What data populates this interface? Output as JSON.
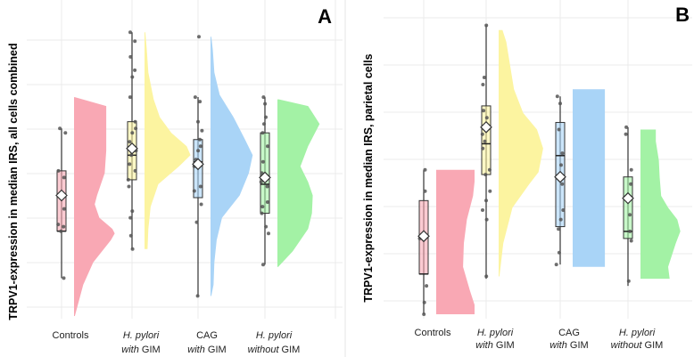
{
  "chart_data": [
    {
      "type": "raincloud",
      "panel_label": "A",
      "ylabel": "TRPV1-expression in median IRS, all cells combined",
      "categories": [
        {
          "line1": "Controls",
          "line1_italic": false,
          "line2": "",
          "line2_italic": "",
          "line2_rest": ""
        },
        {
          "line1": "H. pylori",
          "line1_italic": true,
          "line2_italic": "with",
          "line2_rest": " GIM"
        },
        {
          "line1": "CAG",
          "line1_italic": false,
          "line2_italic": "with",
          "line2_rest": " GIM"
        },
        {
          "line1": "H. pylori",
          "line1_italic": true,
          "line2_italic": "without",
          "line2_rest": " GIM"
        }
      ],
      "ylim": [
        0,
        12
      ],
      "grid": true,
      "colors": [
        "#f9a8b4",
        "#fcf4a0",
        "#a9d4f7",
        "#a3f2a5"
      ],
      "groups": [
        {
          "box": {
            "min": 1.3,
            "q1": 3.4,
            "median": 3.4,
            "q3": 6.1,
            "max": 8.0
          },
          "mean": 5.0,
          "points": [
            3.6,
            3.7,
            3.4,
            4.4,
            5.0,
            5.8,
            6.1,
            7.8,
            8.0,
            1.3
          ],
          "density": {
            "y": [
              -0.4,
              1.0,
              2.0,
              3.0,
              3.3,
              3.5,
              4.0,
              4.6,
              5.0,
              6.0,
              7.0,
              9.0,
              9.4
            ],
            "w": [
              0.01,
              0.12,
              0.25,
              0.48,
              0.53,
              0.5,
              0.33,
              0.27,
              0.3,
              0.4,
              0.42,
              0.42,
              0.01
            ]
          }
        },
        {
          "box": {
            "min": 2.6,
            "q1": 5.7,
            "median": 6.8,
            "q3": 8.3,
            "max": 12.3
          },
          "mean": 7.1,
          "points": [
            2.6,
            3.2,
            4.0,
            4.3,
            5.4,
            5.7,
            6.1,
            6.4,
            6.8,
            7.0,
            7.4,
            7.8,
            8.0,
            8.3,
            9.4,
            10.3,
            10.6,
            11.2,
            11.9,
            12.3
          ],
          "density": {
            "y": [
              2.6,
              3.5,
              4.5,
              5.5,
              6.3,
              6.8,
              7.2,
              7.8,
              8.5,
              9.3,
              10.5,
              11.5,
              12.3
            ],
            "w": [
              0.04,
              0.05,
              0.08,
              0.18,
              0.45,
              0.6,
              0.55,
              0.35,
              0.2,
              0.12,
              0.05,
              0.03,
              0.01
            ]
          }
        },
        {
          "box": {
            "min": 0.5,
            "q1": 4.9,
            "median": 6.5,
            "q3": 7.5,
            "max": 9.4
          },
          "mean": 6.4,
          "points": [
            0.5,
            3.8,
            4.6,
            5.2,
            5.4,
            6.3,
            6.5,
            6.6,
            7.0,
            7.2,
            7.5,
            7.9,
            8.3,
            9.2,
            9.4,
            12.1
          ],
          "density": {
            "y": [
              0.5,
              1.0,
              2.0,
              3.0,
              4.0,
              5.0,
              6.0,
              6.8,
              7.5,
              8.5,
              9.5,
              10.5,
              11.5,
              12.1
            ],
            "w": [
              0.01,
              0.04,
              0.05,
              0.08,
              0.15,
              0.38,
              0.5,
              0.55,
              0.45,
              0.3,
              0.12,
              0.05,
              0.03,
              0.01
            ]
          }
        },
        {
          "box": {
            "min": 1.9,
            "q1": 4.2,
            "median": 5.5,
            "q3": 7.8,
            "max": 9.4
          },
          "mean": 5.8,
          "points": [
            1.9,
            3.3,
            3.6,
            4.2,
            4.5,
            4.7,
            5.4,
            5.6,
            6.0,
            6.5,
            7.2,
            7.8,
            8.2,
            8.5,
            9.1,
            9.4
          ],
          "density": {
            "y": [
              1.8,
              2.5,
              3.5,
              4.2,
              5.0,
              5.6,
              6.3,
              7.2,
              8.2,
              9.0,
              9.3
            ],
            "w": [
              0.01,
              0.2,
              0.4,
              0.45,
              0.46,
              0.4,
              0.3,
              0.4,
              0.55,
              0.4,
              0.02
            ]
          }
        }
      ]
    },
    {
      "type": "raincloud",
      "panel_label": "B",
      "ylabel": "TRPV1-expression in median IRS, parietal cells",
      "categories": [
        {
          "line1": "Controls",
          "line1_italic": false,
          "line2": "",
          "line2_italic": "",
          "line2_rest": ""
        },
        {
          "line1": "H. pylori",
          "line1_italic": true,
          "line2_italic": "with",
          "line2_rest": " GIM"
        },
        {
          "line1": "CAG",
          "line1_italic": false,
          "line2_italic": "with",
          "line2_rest": " GIM"
        },
        {
          "line1": "H. pylori",
          "line1_italic": true,
          "line2_italic": "without",
          "line2_rest": " GIM"
        }
      ],
      "ylim": [
        0,
        12
      ],
      "grid": true,
      "colors": [
        "#f9a8b4",
        "#fcf4a0",
        "#a9d4f7",
        "#a3f2a5"
      ],
      "groups": [
        {
          "box": {
            "min": 0.0,
            "q1": 1.7,
            "median": 1.7,
            "q3": 4.8,
            "max": 6.1
          },
          "mean": 3.3,
          "points": [
            0.0,
            0.5,
            1.2,
            3.2,
            5.2,
            6.1
          ],
          "density": {
            "y": [
              0.0,
              0.4,
              1.0,
              2.0,
              3.0,
              4.0,
              5.0,
              5.6,
              6.1
            ],
            "w": [
              0.5,
              0.5,
              0.44,
              0.35,
              0.36,
              0.4,
              0.48,
              0.5,
              0.5
            ]
          }
        },
        {
          "box": {
            "min": 1.5,
            "q1": 5.9,
            "median": 7.2,
            "q3": 8.8,
            "max": 12.2
          },
          "mean": 7.9,
          "points": [
            1.6,
            4.0,
            4.4,
            4.8,
            5.2,
            5.9,
            6.1,
            7.0,
            7.3,
            7.6,
            8.3,
            8.6,
            9.7,
            10.0,
            12.2
          ],
          "density": {
            "y": [
              1.6,
              3.0,
              4.5,
              5.5,
              6.0,
              7.0,
              7.8,
              8.5,
              9.5,
              10.5,
              11.5,
              12.0
            ],
            "w": [
              0.01,
              0.06,
              0.18,
              0.4,
              0.52,
              0.58,
              0.5,
              0.32,
              0.2,
              0.15,
              0.1,
              0.05
            ]
          }
        },
        {
          "box": {
            "min": 2.1,
            "q1": 3.7,
            "median": 6.7,
            "q3": 8.1,
            "max": 9.2
          },
          "mean": 5.8,
          "points": [
            2.1,
            2.6,
            3.6,
            4.0,
            4.4,
            5.5,
            5.8,
            6.3,
            6.8,
            7.8,
            8.9,
            9.2
          ],
          "density": {
            "y": [
              2.0,
              2.5,
              4.0,
              6.0,
              8.0,
              9.0,
              9.5
            ],
            "w": [
              0.42,
              0.42,
              0.42,
              0.42,
              0.42,
              0.42,
              0.42
            ]
          }
        },
        {
          "box": {
            "min": 1.2,
            "q1": 3.2,
            "median": 3.5,
            "q3": 5.8,
            "max": 7.9
          },
          "mean": 4.9,
          "points": [
            1.4,
            3.1,
            3.5,
            4.2,
            5.0,
            5.5,
            6.1,
            7.6,
            7.9
          ],
          "density": {
            "y": [
              1.5,
              2.0,
              3.0,
              3.5,
              4.0,
              4.5,
              5.0,
              5.8,
              6.5,
              7.3,
              7.8
            ],
            "w": [
              0.38,
              0.36,
              0.46,
              0.52,
              0.48,
              0.36,
              0.27,
              0.25,
              0.24,
              0.2,
              0.2
            ]
          }
        }
      ]
    }
  ]
}
